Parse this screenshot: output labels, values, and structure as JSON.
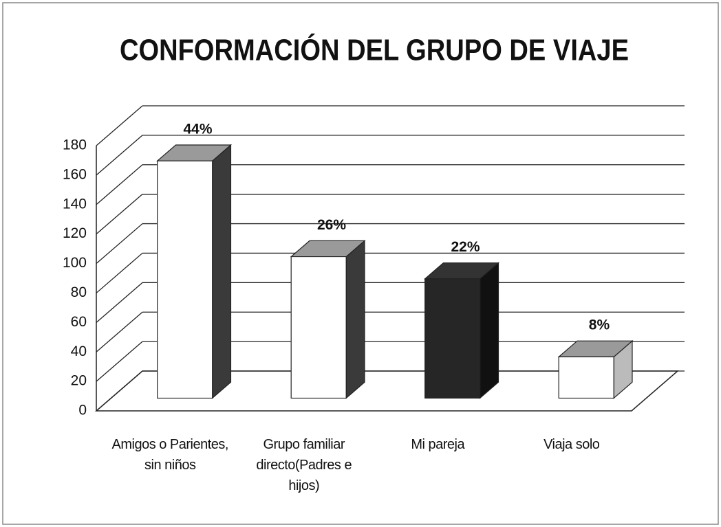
{
  "chart_data": {
    "type": "bar3d",
    "title": "CONFORMACIÓN DEL GRUPO DE VIAJE",
    "categories": [
      "Amigos o Parientes, sin niños",
      "Grupo familiar directo(Padres e hijos)",
      "Mi pareja",
      "Viaja solo"
    ],
    "values": [
      161,
      96,
      81,
      28
    ],
    "value_labels": [
      "44%",
      "26%",
      "22%",
      "8%"
    ],
    "colors": [
      "#ffffff",
      "#ffffff",
      "#262626",
      "#ffffff"
    ],
    "ylim": [
      0,
      180
    ],
    "yticks": [
      0,
      20,
      40,
      60,
      80,
      100,
      120,
      140,
      160,
      180
    ],
    "grid": true
  }
}
